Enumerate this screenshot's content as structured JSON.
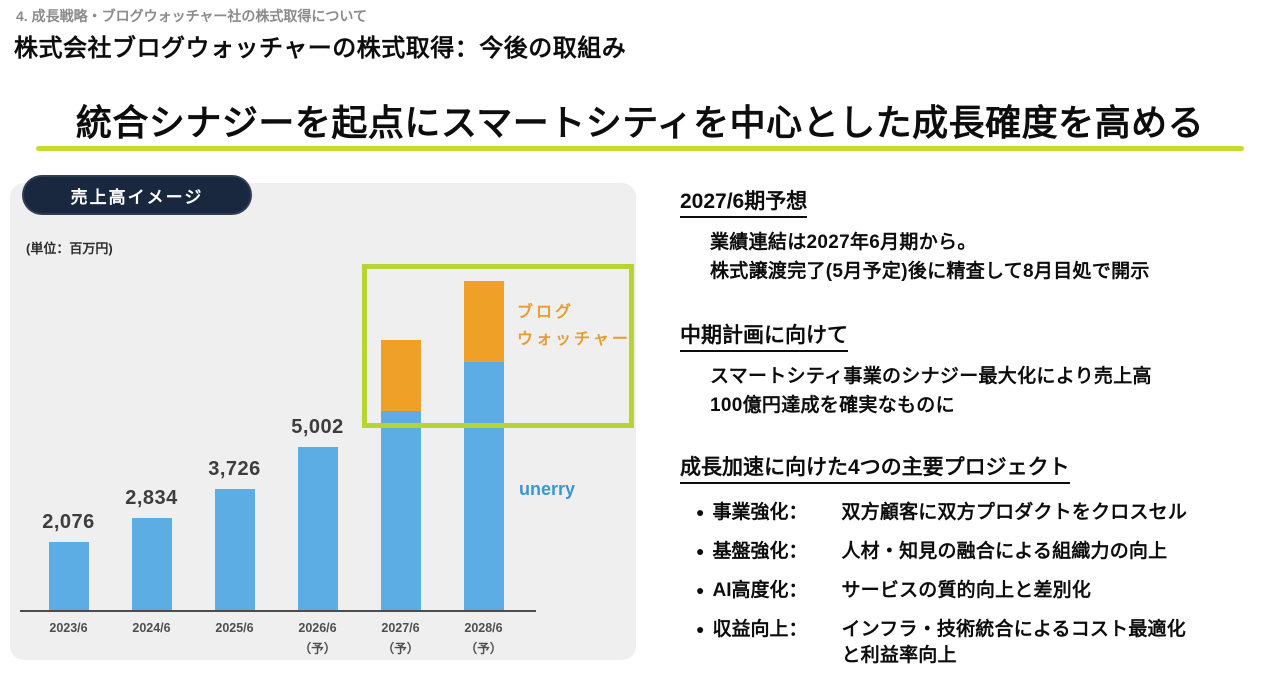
{
  "page": {
    "breadcrumb": "4. 成長戦略・ブログウォッチャー社の株式取得について",
    "title": "株式会社ブログウォッチャーの株式取得：今後の取組み",
    "headline": "統合シナジーを起点にスマートシティを中心とした成長確度を高める"
  },
  "colors": {
    "accent_yellow_green": "#c9d92f",
    "highlight_box_green": "#b8d434",
    "bar_blue": "#5bade4",
    "bar_orange": "#efa027",
    "badge_navy": "#19273f",
    "panel_gray": "#efefef",
    "unerry_label_blue": "#3c96d2",
    "blogwatcher_label_orange": "#e79d2e"
  },
  "chart": {
    "badge": "売上高イメージ",
    "unit_label": "(単位：百万円)",
    "unerry_label": "unerry",
    "blogwatcher_label": "ブログ\nウォッチャー"
  },
  "chart_data": {
    "type": "bar",
    "stacked": true,
    "unit": "百万円",
    "title": "売上高イメージ",
    "categories": [
      "2023/6",
      "2024/6",
      "2025/6",
      "2026/6\n（予）",
      "2027/6\n（予）",
      "2028/6\n（予）"
    ],
    "series": [
      {
        "name": "unerry",
        "color": "#5bade4",
        "values": [
          2076,
          2834,
          3726,
          5002,
          6100,
          7600
        ]
      },
      {
        "name": "ブログウォッチャー",
        "color": "#efa027",
        "values": [
          0,
          0,
          0,
          0,
          2200,
          2500
        ]
      }
    ],
    "value_labels": [
      "2,076",
      "2,834",
      "3,726",
      "5,002",
      "",
      ""
    ],
    "labeled": [
      true,
      true,
      true,
      true,
      false,
      false
    ],
    "ylim": [
      0,
      11000
    ],
    "grid": false,
    "legend": "inline-labels",
    "highlight": "2027/6と2028/6の上部セグメントを黄緑の枠で強調"
  },
  "sections": [
    {
      "heading": "2027/6期予想",
      "body": "業績連結は2027年6月期から。\n株式譲渡完了(5月予定)後に精査して8月目処で開示"
    },
    {
      "heading": "中期計画に向けて",
      "body": "スマートシティ事業のシナジー最大化により売上高\n100億円達成を確実なものに"
    },
    {
      "heading": "成長加速に向けた4つの主要プロジェクト",
      "bullet_glyph": "●",
      "bullets": [
        {
          "label": "事業強化：",
          "text": "双方顧客に双方プロダクトをクロスセル"
        },
        {
          "label": "基盤強化：",
          "text": "人材・知見の融合による組織力の向上"
        },
        {
          "label": "AI高度化：",
          "text": "サービスの質的向上と差別化"
        },
        {
          "label": "収益向上：",
          "text": "インフラ・技術統合によるコスト最適化\nと利益率向上"
        }
      ]
    }
  ]
}
